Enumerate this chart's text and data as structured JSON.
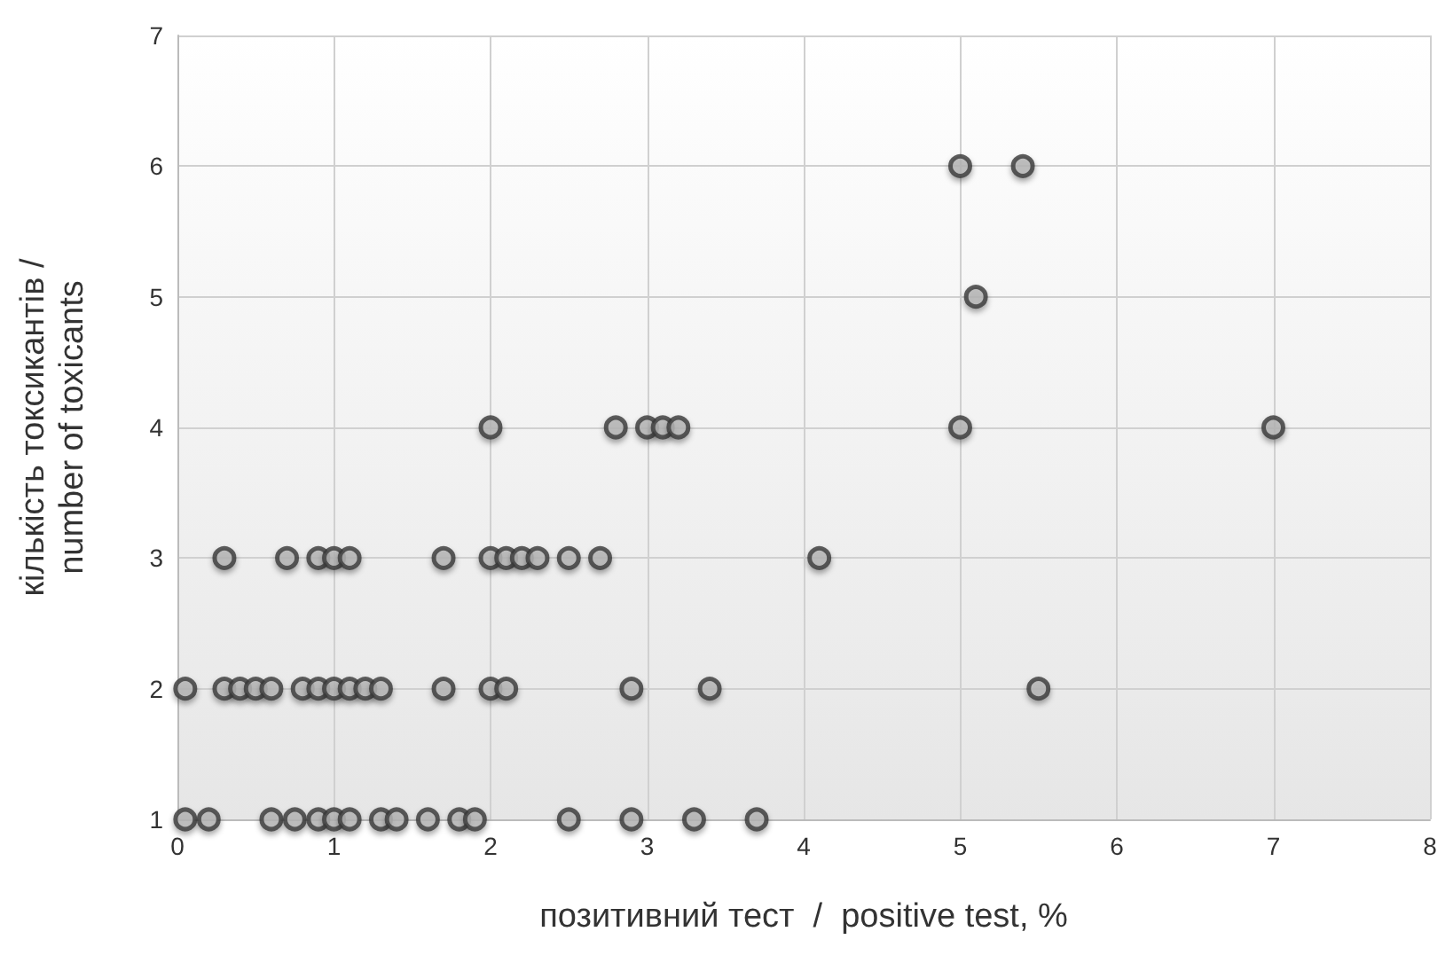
{
  "chart_data": {
    "type": "scatter",
    "xlabel": "позитивний тест  /  positive test, %",
    "ylabel": "кількість токсикантів /\nnumber of toxicants",
    "xlim": [
      0,
      8
    ],
    "xticks": [
      0,
      1,
      2,
      3,
      4,
      5,
      6,
      7,
      8
    ],
    "ylim": [
      1,
      7
    ],
    "yticks": [
      1,
      2,
      3,
      4,
      5,
      6,
      7
    ],
    "grid": true,
    "marker": "circle",
    "series": [
      {
        "color": "#b8b8b8",
        "x": [
          0.05,
          0.2,
          0.6,
          0.75,
          0.9,
          1.0,
          1.1,
          1.3,
          1.4,
          1.6,
          1.8,
          1.9,
          2.5,
          2.9,
          3.3,
          3.7,
          0.05,
          0.3,
          0.4,
          0.5,
          0.6,
          0.8,
          0.9,
          1.0,
          1.1,
          1.2,
          1.3,
          1.7,
          2.0,
          2.1,
          2.9,
          3.4,
          5.5,
          0.3,
          0.7,
          0.9,
          1.0,
          1.1,
          1.7,
          2.0,
          2.1,
          2.2,
          2.3,
          2.5,
          2.7,
          4.1,
          2.0,
          2.8,
          3.0,
          3.1,
          3.2,
          5.0,
          7.0,
          5.1,
          5.0,
          5.4
        ],
        "values": [
          1,
          1,
          1,
          1,
          1,
          1,
          1,
          1,
          1,
          1,
          1,
          1,
          1,
          1,
          1,
          1,
          2,
          2,
          2,
          2,
          2,
          2,
          2,
          2,
          2,
          2,
          2,
          2,
          2,
          2,
          2,
          2,
          2,
          3,
          3,
          3,
          3,
          3,
          3,
          3,
          3,
          3,
          3,
          3,
          3,
          3,
          4,
          4,
          4,
          4,
          4,
          4,
          4,
          5,
          6,
          6
        ]
      }
    ]
  }
}
